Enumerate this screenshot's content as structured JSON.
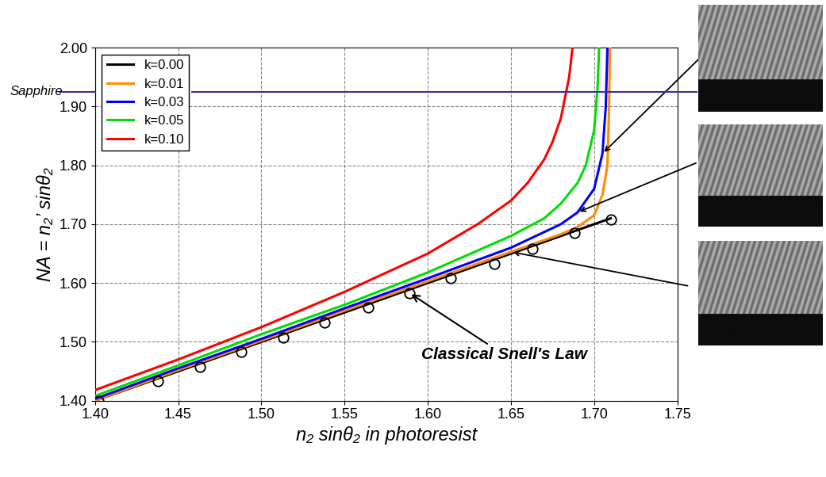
{
  "chart_data": {
    "type": "line",
    "x_label": "n₂ sinθ₂ in photoresist",
    "y_label": "NA = n₂’ sinθ₂",
    "xlim": [
      1.4,
      1.75
    ],
    "ylim": [
      1.4,
      2.0
    ],
    "xticks": [
      {
        "value": 1.4,
        "label": "1.40"
      },
      {
        "value": 1.45,
        "label": "1.45"
      },
      {
        "value": 1.5,
        "label": "1.50"
      },
      {
        "value": 1.55,
        "label": "1.55"
      },
      {
        "value": 1.6,
        "label": "1.60"
      },
      {
        "value": 1.65,
        "label": "1.65"
      },
      {
        "value": 1.7,
        "label": "1.70"
      },
      {
        "value": 1.75,
        "label": "1.75"
      }
    ],
    "yticks": [
      {
        "value": 1.4,
        "label": "1.40"
      },
      {
        "value": 1.5,
        "label": "1.50"
      },
      {
        "value": 1.6,
        "label": "1.60"
      },
      {
        "value": 1.7,
        "label": "1.70"
      },
      {
        "value": 1.8,
        "label": "1.80"
      },
      {
        "value": 1.9,
        "label": "1.90"
      },
      {
        "value": 2.0,
        "label": "2.00"
      }
    ],
    "grid": true,
    "legend": "upper left",
    "series": [
      {
        "name": "k=0.00",
        "color": "#000000",
        "line_style": "solid",
        "x": [
          1.4,
          1.71
        ],
        "values": [
          1.4,
          1.71
        ]
      },
      {
        "name": "k=0.01",
        "color": "#ff8c00",
        "line_style": "solid",
        "x": [
          1.4,
          1.45,
          1.5,
          1.55,
          1.6,
          1.65,
          1.68,
          1.69,
          1.7,
          1.705,
          1.708,
          1.709,
          1.7095
        ],
        "values": [
          1.4,
          1.452,
          1.502,
          1.553,
          1.603,
          1.653,
          1.683,
          1.695,
          1.715,
          1.75,
          1.8,
          1.9,
          2.0
        ]
      },
      {
        "name": "k=0.03",
        "color": "#0000ff",
        "line_style": "solid",
        "x": [
          1.4,
          1.45,
          1.5,
          1.55,
          1.6,
          1.65,
          1.68,
          1.69,
          1.7,
          1.705,
          1.707,
          1.708
        ],
        "values": [
          1.403,
          1.455,
          1.505,
          1.557,
          1.608,
          1.66,
          1.7,
          1.72,
          1.76,
          1.82,
          1.9,
          2.0
        ]
      },
      {
        "name": "k=0.05",
        "color": "#00e000",
        "line_style": "solid",
        "x": [
          1.4,
          1.45,
          1.5,
          1.55,
          1.6,
          1.65,
          1.67,
          1.68,
          1.69,
          1.695,
          1.7,
          1.702,
          1.703
        ],
        "values": [
          1.408,
          1.46,
          1.513,
          1.563,
          1.618,
          1.68,
          1.71,
          1.735,
          1.77,
          1.8,
          1.86,
          1.93,
          2.0
        ]
      },
      {
        "name": "k=0.10",
        "color": "#ff0000",
        "line_style": "solid",
        "x": [
          1.4,
          1.45,
          1.5,
          1.55,
          1.6,
          1.63,
          1.65,
          1.66,
          1.67,
          1.675,
          1.68,
          1.685,
          1.687
        ],
        "values": [
          1.418,
          1.47,
          1.525,
          1.585,
          1.65,
          1.7,
          1.74,
          1.77,
          1.81,
          1.84,
          1.88,
          1.95,
          2.0
        ]
      },
      {
        "color": "#000000",
        "marker": "circle",
        "line_style": "none",
        "x": [
          1.402,
          1.438,
          1.463,
          1.488,
          1.513,
          1.538,
          1.564,
          1.589,
          1.614,
          1.64,
          1.663,
          1.688,
          1.71
        ],
        "values": [
          1.4,
          1.433,
          1.458,
          1.483,
          1.507,
          1.533,
          1.558,
          1.583,
          1.608,
          1.632,
          1.658,
          1.685,
          1.708
        ]
      }
    ],
    "reference_lines": [
      {
        "label": "Sapphire",
        "y": 1.925,
        "color": "#333399"
      }
    ],
    "annotations": [
      {
        "text": "Classical Snell's Law"
      }
    ]
  }
}
